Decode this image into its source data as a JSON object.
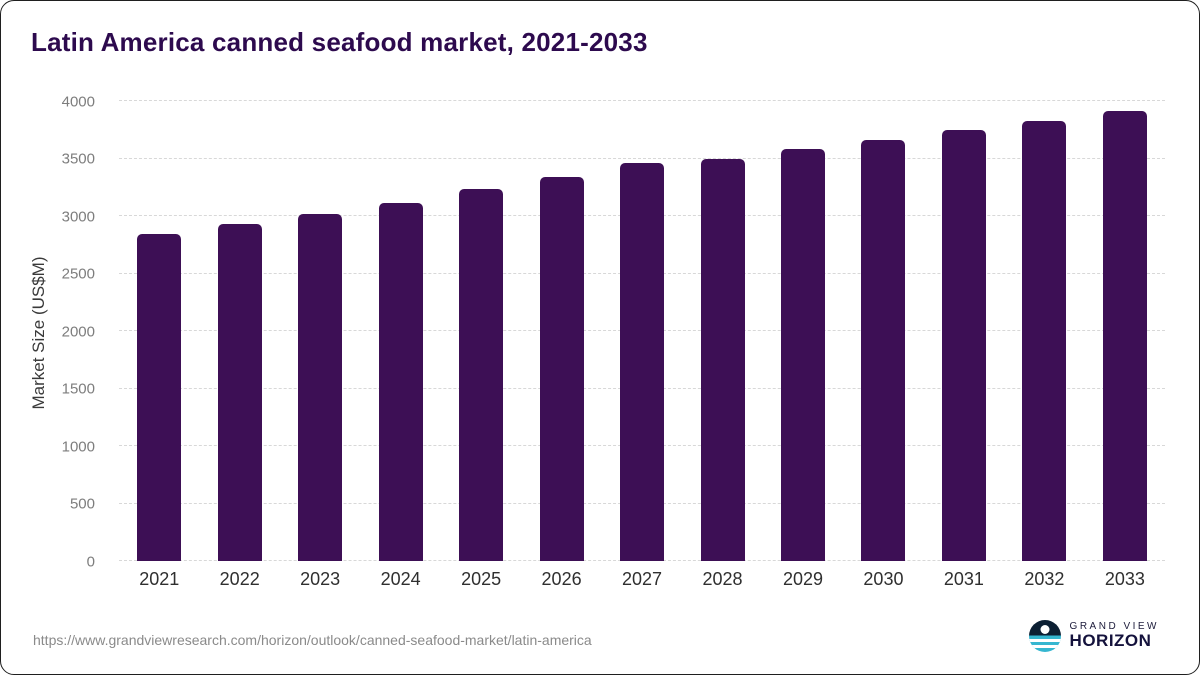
{
  "title": "Latin America canned seafood market, 2021-2033",
  "footer": {
    "source_url": "https://www.grandviewresearch.com/horizon/outlook/canned-seafood-market/latin-america"
  },
  "logo": {
    "line1": "GRAND VIEW",
    "line2": "HORIZON"
  },
  "colors": {
    "bar": "#3d0f55",
    "title": "#2d0a4e",
    "gridline": "#d8d8d8",
    "tick_label": "#7d7d7d"
  },
  "chart_data": {
    "type": "bar",
    "title": "Latin America canned seafood market, 2021-2033",
    "categories": [
      "2021",
      "2022",
      "2023",
      "2024",
      "2025",
      "2026",
      "2027",
      "2028",
      "2029",
      "2030",
      "2031",
      "2032",
      "2033"
    ],
    "values": [
      2840,
      2930,
      3015,
      3115,
      3235,
      3335,
      3460,
      3495,
      3580,
      3665,
      3750,
      3825,
      3915
    ],
    "xlabel": "",
    "ylabel": "Market Size (US$M)",
    "ylim": [
      0,
      4000
    ],
    "yticks": [
      0,
      500,
      1000,
      1500,
      2000,
      2500,
      3000,
      3500,
      4000
    ],
    "grid": "horizontal-dashed",
    "legend": "none",
    "bar_color": "#3d0f55"
  }
}
